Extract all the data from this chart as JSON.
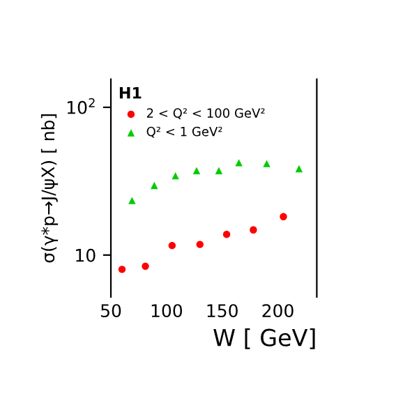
{
  "chart_data": {
    "type": "scatter",
    "xlabel": "W [ GeV]",
    "ylabel": "σ(γ*p→J/ψX) [ nb]",
    "legend_title": "H1",
    "legend": "top left",
    "log": "y",
    "grid": false,
    "xlim": [
      50,
      235
    ],
    "xticks": [
      50,
      100,
      150,
      200
    ],
    "ylim": [
      5.2,
      155
    ],
    "yticks": [
      {
        "value": 10,
        "label": "10"
      },
      {
        "value": 100,
        "label": "10$^{2}$"
      }
    ],
    "series": [
      {
        "name": "2 < Q² < 100 GeV²",
        "color": "#ff0000",
        "marker": "circle",
        "x": [
          60,
          81,
          105,
          130,
          154,
          178,
          205
        ],
        "values": [
          8.0,
          8.4,
          11.6,
          11.8,
          13.8,
          14.8,
          18.2
        ]
      },
      {
        "name": "Q² < 1 GeV²",
        "color": "#00cc00",
        "marker": "triangle",
        "x": [
          69,
          89,
          108,
          127,
          147,
          165,
          190,
          219
        ],
        "values": [
          23.4,
          29.6,
          34.4,
          37.3,
          37.3,
          42.2,
          41.6,
          38.4
        ]
      }
    ]
  }
}
